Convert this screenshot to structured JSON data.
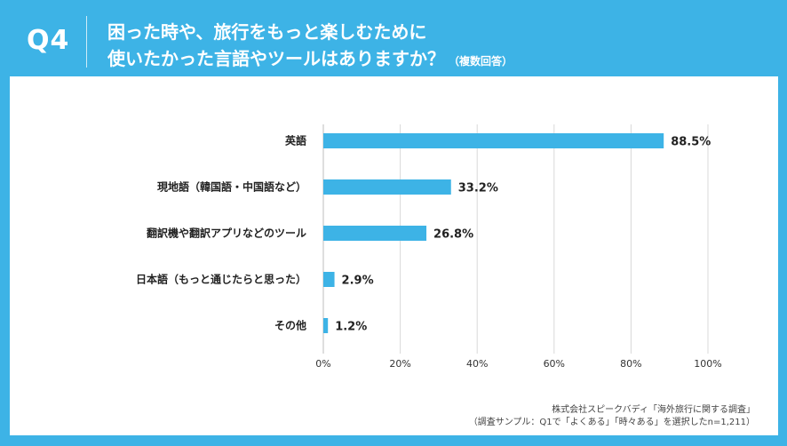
{
  "header": {
    "question_label": "Q4",
    "title_line1": "困った時や、旅行をもっと楽しむために",
    "title_line2": "使いたかった言語やツールはありますか？",
    "title_note": "（複数回答）"
  },
  "source": {
    "line1": "株式会社スピークバディ「海外旅行に関する調査」",
    "line2": "（調査サンプル：Q1で「よくある」「時々ある」を選択したn=1,211）"
  },
  "colors": {
    "background": "#3db3e6",
    "bar": "#3db3e6",
    "panel": "#ffffff",
    "grid": "#d9d9d9"
  },
  "chart_data": {
    "type": "bar",
    "orientation": "horizontal",
    "categories": [
      "英語",
      "現地語（韓国語・中国語など）",
      "翻訳機や翻訳アプリなどのツール",
      "日本語（もっと通じたらと思った）",
      "その他"
    ],
    "values": [
      88.5,
      33.2,
      26.8,
      2.9,
      1.2
    ],
    "value_labels": [
      "88.5%",
      "33.2%",
      "26.8%",
      "2.9%",
      "1.2%"
    ],
    "xticks": [
      0,
      20,
      40,
      60,
      80,
      100
    ],
    "xtick_labels": [
      "0%",
      "20%",
      "40%",
      "60%",
      "80%",
      "100%"
    ],
    "xlim": [
      0,
      100
    ],
    "grid": true,
    "legend": "none"
  }
}
